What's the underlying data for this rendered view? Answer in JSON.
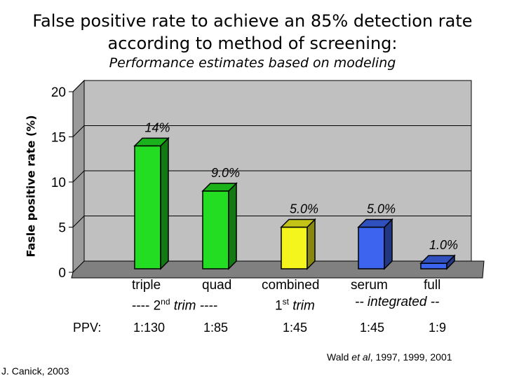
{
  "chart_data": {
    "type": "bar",
    "title_line1": "False positive rate to achieve an 85% detection rate",
    "title_line2": "according to method of screening:",
    "subtitle": "Performance estimates based on modeling",
    "ylabel": "Fasle positive rate (%)",
    "ylim": [
      0,
      20
    ],
    "yticks": [
      0,
      5,
      10,
      15,
      20
    ],
    "grid": true,
    "categories": [
      "triple",
      "quad",
      "combined",
      "serum",
      "full"
    ],
    "values": [
      14,
      9.0,
      5.0,
      5.0,
      1.0
    ],
    "value_labels": [
      "14%",
      "9.0%",
      "5.0%",
      "5.0%",
      "1.0%"
    ],
    "bar_colors": [
      "#22dd22",
      "#22dd22",
      "#f5f51e",
      "#3c64ee",
      "#3c64ee"
    ],
    "x_group_labels": {
      "g1_top_left": "triple",
      "g1_top_right": "quad",
      "g1_bottom_pre": "---- 2",
      "g1_bottom_sup": "nd",
      "g1_bottom_post": " trim ----",
      "g2_top": "combined",
      "g2_bottom_main": "1",
      "g2_bottom_sup": "st",
      "g2_bottom_post": " trim",
      "g3_top_left": "serum",
      "g3_top_right": "full",
      "g3_bottom": "-- integrated --"
    },
    "ppv_label": "PPV:",
    "ppv_values": [
      "1:130",
      "1:85",
      "1:45",
      "1:45",
      "1:9"
    ]
  },
  "citation": {
    "author": "Wald ",
    "etal": "et al",
    "years": ", 1997, 1999, 2001"
  },
  "credit": "J. Canick, 2003",
  "colors": {
    "wall": "#c0c0c0",
    "floor": "#808080",
    "grid": "#000000"
  }
}
